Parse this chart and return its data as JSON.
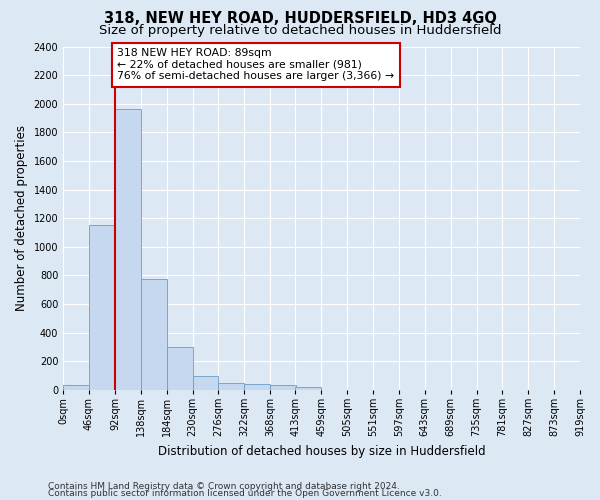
{
  "title": "318, NEW HEY ROAD, HUDDERSFIELD, HD3 4GQ",
  "subtitle": "Size of property relative to detached houses in Huddersfield",
  "xlabel": "Distribution of detached houses by size in Huddersfield",
  "ylabel": "Number of detached properties",
  "footer_line1": "Contains HM Land Registry data © Crown copyright and database right 2024.",
  "footer_line2": "Contains public sector information licensed under the Open Government Licence v3.0.",
  "bin_edges": [
    0,
    46,
    92,
    138,
    184,
    230,
    276,
    322,
    368,
    413,
    459,
    505,
    551,
    597,
    643,
    689,
    735,
    781,
    827,
    873,
    919
  ],
  "bin_labels": [
    "0sqm",
    "46sqm",
    "92sqm",
    "138sqm",
    "184sqm",
    "230sqm",
    "276sqm",
    "322sqm",
    "368sqm",
    "413sqm",
    "459sqm",
    "505sqm",
    "551sqm",
    "597sqm",
    "643sqm",
    "689sqm",
    "735sqm",
    "781sqm",
    "827sqm",
    "873sqm",
    "919sqm"
  ],
  "bar_heights": [
    35,
    1150,
    1960,
    775,
    300,
    100,
    50,
    42,
    35,
    20,
    0,
    0,
    0,
    0,
    0,
    0,
    0,
    0,
    0,
    0
  ],
  "bar_color": "#c5d8ef",
  "bar_edge_color": "#6a9ec4",
  "vline_x": 92,
  "vline_color": "#cc0000",
  "annotation_text": "318 NEW HEY ROAD: 89sqm\n← 22% of detached houses are smaller (981)\n76% of semi-detached houses are larger (3,366) →",
  "annotation_box_color": "#ffffff",
  "annotation_box_edge_color": "#cc0000",
  "ylim": [
    0,
    2400
  ],
  "yticks": [
    0,
    200,
    400,
    600,
    800,
    1000,
    1200,
    1400,
    1600,
    1800,
    2000,
    2200,
    2400
  ],
  "plot_bg_color": "#dde8f5",
  "fig_bg_color": "#dde8f5",
  "grid_color": "#ffffff",
  "title_fontsize": 10.5,
  "subtitle_fontsize": 9.5,
  "label_fontsize": 8.5,
  "tick_fontsize": 7,
  "footer_fontsize": 6.5,
  "annotation_fontsize": 7.8
}
